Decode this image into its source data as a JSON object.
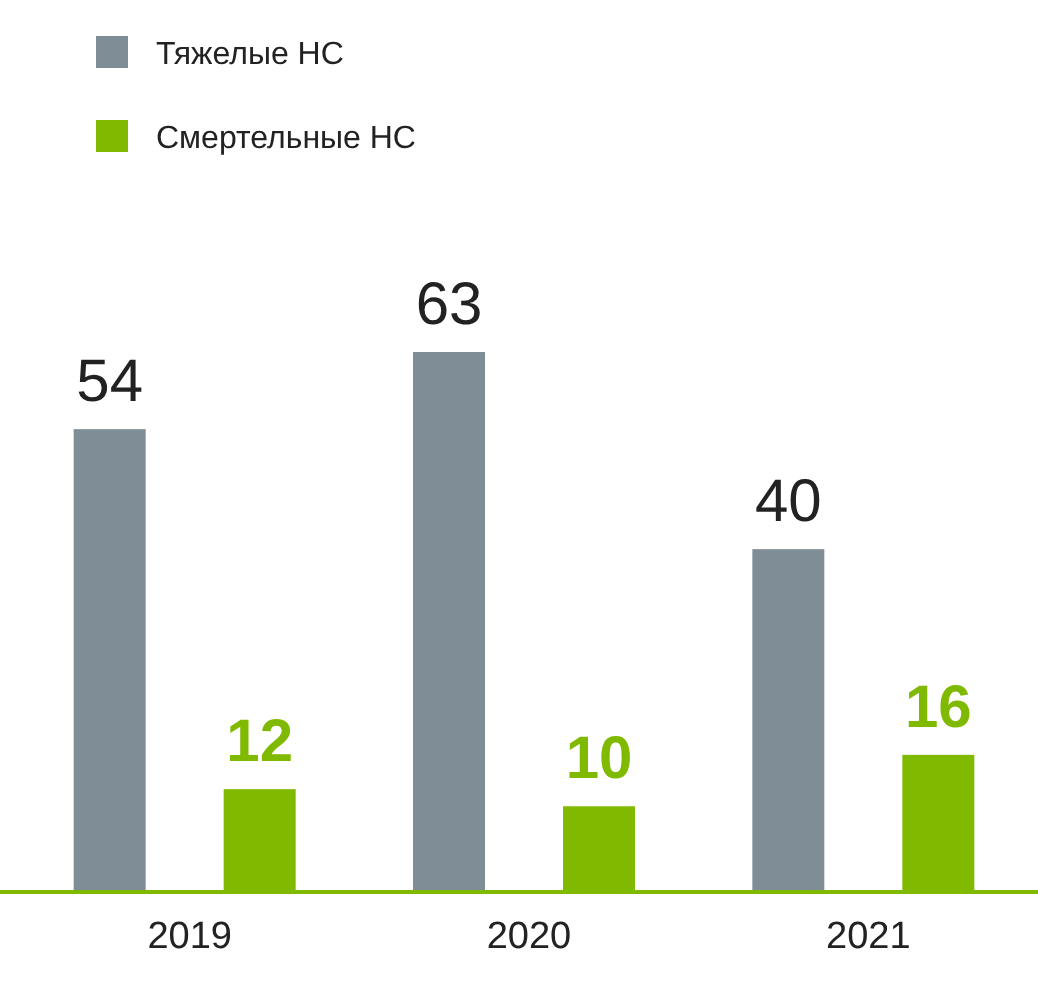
{
  "chart_data": {
    "type": "bar",
    "categories": [
      "2019",
      "2020",
      "2021"
    ],
    "series": [
      {
        "name": "Тяжелые НС",
        "color": "#7f8d96",
        "values": [
          54,
          63,
          40
        ]
      },
      {
        "name": "Смертельные НС",
        "color": "#7fba00",
        "values": [
          12,
          10,
          16
        ]
      }
    ],
    "data_labels": true,
    "legend": "top left"
  }
}
